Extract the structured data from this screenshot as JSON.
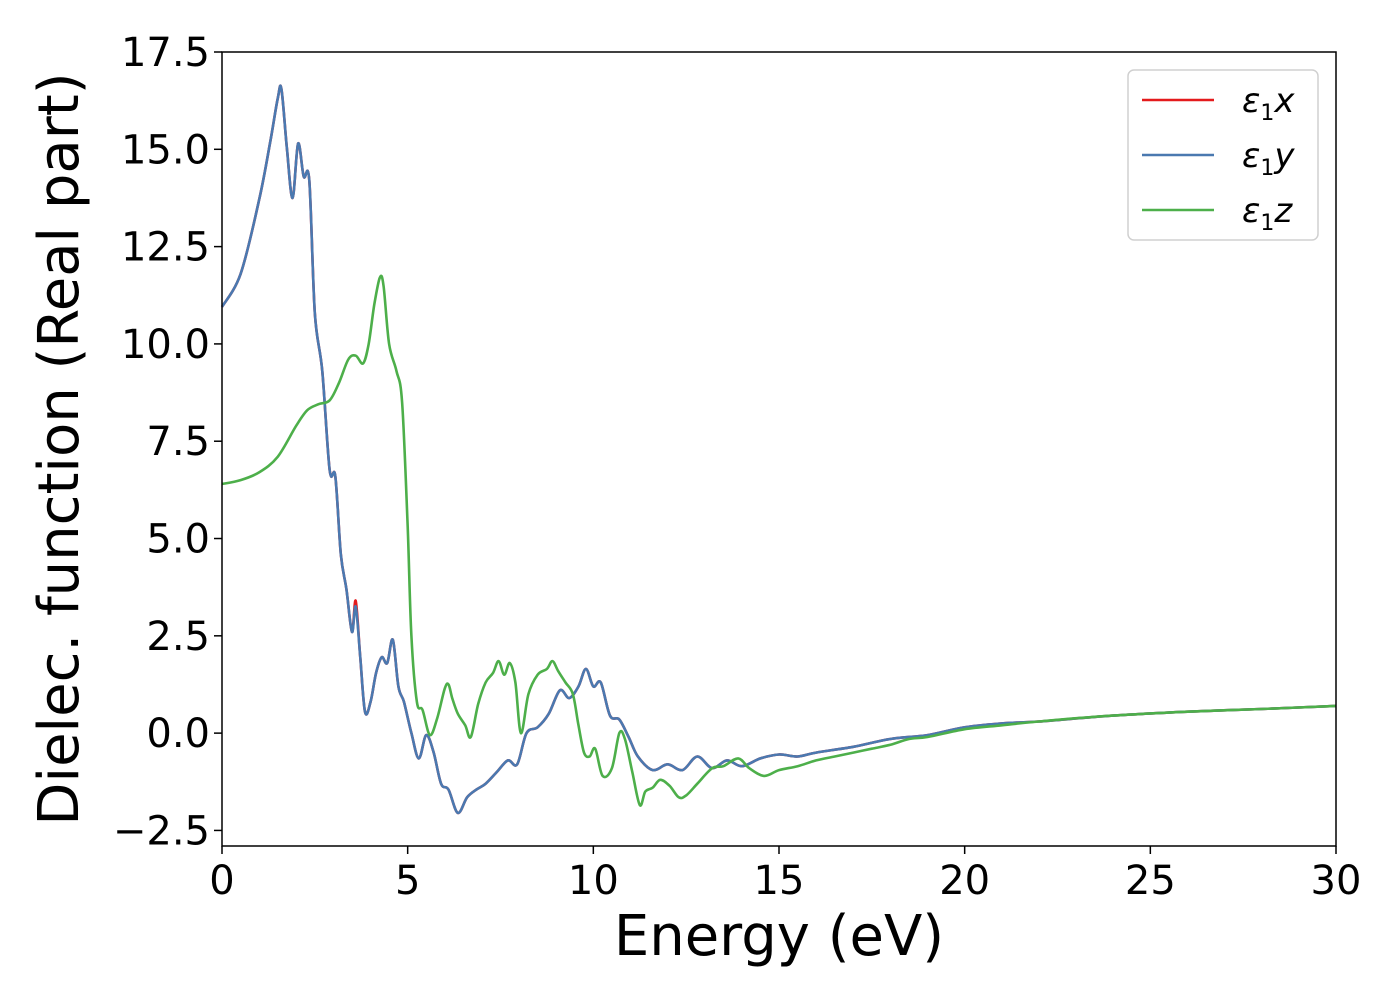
{
  "chart_data": {
    "type": "line",
    "xlabel": "Energy (eV)",
    "ylabel": "Dielec. function (Real part)",
    "xlim": [
      0,
      30
    ],
    "ylim": [
      -2.9,
      17.5
    ],
    "xticks": [
      0,
      5,
      10,
      15,
      20,
      25,
      30
    ],
    "xtick_labels": [
      "0",
      "5",
      "10",
      "15",
      "20",
      "25",
      "30"
    ],
    "yticks": [
      -2.5,
      0.0,
      2.5,
      5.0,
      7.5,
      10.0,
      12.5,
      15.0,
      17.5
    ],
    "ytick_labels": [
      "−2.5",
      "0.0",
      "2.5",
      "5.0",
      "7.5",
      "10.0",
      "12.5",
      "15.0",
      "17.5"
    ],
    "grid": false,
    "legend_position": "top-right",
    "series": [
      {
        "name": "ε",
        "name_sub": "1",
        "name_suffix": "x",
        "color": "#e41a1c",
        "x": [
          0,
          0.5,
          1.0,
          1.3,
          1.5,
          1.6,
          1.75,
          1.9,
          2.05,
          2.2,
          2.35,
          2.5,
          2.7,
          2.9,
          3.05,
          3.2,
          3.35,
          3.5,
          3.6,
          3.72,
          3.85,
          4.0,
          4.15,
          4.3,
          4.45,
          4.6,
          4.75,
          4.9,
          5.1,
          5.3,
          5.5,
          5.7,
          5.9,
          6.1,
          6.35,
          6.6,
          6.85,
          7.1,
          7.4,
          7.7,
          7.95,
          8.2,
          8.5,
          8.8,
          9.1,
          9.35,
          9.6,
          9.8,
          10.0,
          10.2,
          10.45,
          10.7,
          10.95,
          11.2,
          11.6,
          12.0,
          12.4,
          12.8,
          13.2,
          13.6,
          14.0,
          14.5,
          15.0,
          15.5,
          16.0,
          17.0,
          18.0,
          19.0,
          20.0,
          21.0,
          22.0,
          24.0,
          26.0,
          28.0,
          30.0
        ],
        "values": [
          10.95,
          11.8,
          13.7,
          15.2,
          16.3,
          16.55,
          15.0,
          13.75,
          15.15,
          14.3,
          14.2,
          10.8,
          9.3,
          6.75,
          6.6,
          4.6,
          3.7,
          2.6,
          3.4,
          2.0,
          0.55,
          0.8,
          1.55,
          1.95,
          1.8,
          2.4,
          1.2,
          0.8,
          0.0,
          -0.65,
          -0.05,
          -0.5,
          -1.3,
          -1.45,
          -2.05,
          -1.65,
          -1.45,
          -1.3,
          -1.0,
          -0.7,
          -0.8,
          0.0,
          0.15,
          0.5,
          1.1,
          0.9,
          1.2,
          1.65,
          1.2,
          1.3,
          0.45,
          0.35,
          -0.1,
          -0.6,
          -0.95,
          -0.8,
          -0.95,
          -0.6,
          -0.9,
          -0.7,
          -0.85,
          -0.65,
          -0.55,
          -0.6,
          -0.5,
          -0.35,
          -0.15,
          -0.05,
          0.15,
          0.25,
          0.3,
          0.45,
          0.55,
          0.62,
          0.7
        ]
      },
      {
        "name": "ε",
        "name_sub": "1",
        "name_suffix": "y",
        "color": "#4a79b0",
        "x": [
          0,
          0.5,
          1.0,
          1.3,
          1.5,
          1.6,
          1.75,
          1.9,
          2.05,
          2.2,
          2.35,
          2.5,
          2.7,
          2.9,
          3.05,
          3.2,
          3.35,
          3.5,
          3.6,
          3.72,
          3.85,
          4.0,
          4.15,
          4.3,
          4.45,
          4.6,
          4.75,
          4.9,
          5.1,
          5.3,
          5.5,
          5.7,
          5.9,
          6.1,
          6.35,
          6.6,
          6.85,
          7.1,
          7.4,
          7.7,
          7.95,
          8.2,
          8.5,
          8.8,
          9.1,
          9.35,
          9.6,
          9.8,
          10.0,
          10.2,
          10.45,
          10.7,
          10.95,
          11.2,
          11.6,
          12.0,
          12.4,
          12.8,
          13.2,
          13.6,
          14.0,
          14.5,
          15.0,
          15.5,
          16.0,
          17.0,
          18.0,
          19.0,
          20.0,
          21.0,
          22.0,
          24.0,
          26.0,
          28.0,
          30.0
        ],
        "values": [
          10.95,
          11.8,
          13.7,
          15.2,
          16.3,
          16.55,
          15.0,
          13.75,
          15.15,
          14.3,
          14.2,
          10.8,
          9.3,
          6.75,
          6.6,
          4.6,
          3.7,
          2.6,
          3.25,
          2.0,
          0.55,
          0.8,
          1.55,
          1.95,
          1.8,
          2.4,
          1.2,
          0.8,
          0.0,
          -0.65,
          -0.05,
          -0.5,
          -1.3,
          -1.45,
          -2.05,
          -1.65,
          -1.45,
          -1.3,
          -1.0,
          -0.7,
          -0.8,
          0.0,
          0.15,
          0.5,
          1.1,
          0.9,
          1.2,
          1.65,
          1.2,
          1.3,
          0.45,
          0.35,
          -0.1,
          -0.6,
          -0.95,
          -0.8,
          -0.95,
          -0.6,
          -0.9,
          -0.7,
          -0.85,
          -0.65,
          -0.55,
          -0.6,
          -0.5,
          -0.35,
          -0.15,
          -0.05,
          0.15,
          0.25,
          0.3,
          0.45,
          0.55,
          0.62,
          0.7
        ]
      },
      {
        "name": "ε",
        "name_sub": "1",
        "name_suffix": "z",
        "color": "#4daf4a",
        "x": [
          0,
          0.5,
          1.0,
          1.5,
          2.0,
          2.3,
          2.6,
          2.9,
          3.15,
          3.4,
          3.6,
          3.8,
          3.95,
          4.1,
          4.25,
          4.35,
          4.5,
          4.7,
          4.85,
          5.0,
          5.1,
          5.25,
          5.4,
          5.6,
          5.8,
          6.0,
          6.1,
          6.2,
          6.35,
          6.55,
          6.7,
          6.9,
          7.1,
          7.3,
          7.45,
          7.6,
          7.75,
          7.9,
          8.05,
          8.25,
          8.5,
          8.75,
          8.9,
          9.05,
          9.25,
          9.45,
          9.6,
          9.75,
          9.9,
          10.05,
          10.25,
          10.5,
          10.7,
          10.85,
          11.05,
          11.25,
          11.4,
          11.6,
          11.8,
          12.05,
          12.3,
          12.5,
          12.8,
          13.2,
          13.5,
          13.9,
          14.2,
          14.6,
          15.0,
          15.5,
          16.0,
          16.5,
          17.0,
          17.5,
          18.0,
          18.5,
          19.0,
          20.0,
          21.0,
          22.0,
          24.0,
          26.0,
          28.0,
          30.0
        ],
        "values": [
          6.4,
          6.5,
          6.7,
          7.1,
          7.9,
          8.3,
          8.45,
          8.55,
          9.0,
          9.6,
          9.7,
          9.5,
          10.0,
          11.0,
          11.7,
          11.5,
          10.0,
          9.3,
          8.5,
          5.3,
          2.5,
          0.8,
          0.6,
          -0.05,
          0.4,
          1.15,
          1.25,
          0.9,
          0.5,
          0.2,
          -0.1,
          0.75,
          1.3,
          1.55,
          1.85,
          1.5,
          1.8,
          1.3,
          0.0,
          1.0,
          1.5,
          1.65,
          1.85,
          1.6,
          1.3,
          1.0,
          0.2,
          -0.5,
          -0.6,
          -0.4,
          -1.1,
          -0.9,
          0.0,
          -0.15,
          -1.0,
          -1.85,
          -1.5,
          -1.4,
          -1.2,
          -1.35,
          -1.65,
          -1.6,
          -1.3,
          -0.9,
          -0.85,
          -0.65,
          -0.9,
          -1.1,
          -0.95,
          -0.85,
          -0.7,
          -0.6,
          -0.5,
          -0.4,
          -0.3,
          -0.15,
          -0.1,
          0.1,
          0.2,
          0.3,
          0.45,
          0.55,
          0.62,
          0.7
        ]
      }
    ]
  }
}
